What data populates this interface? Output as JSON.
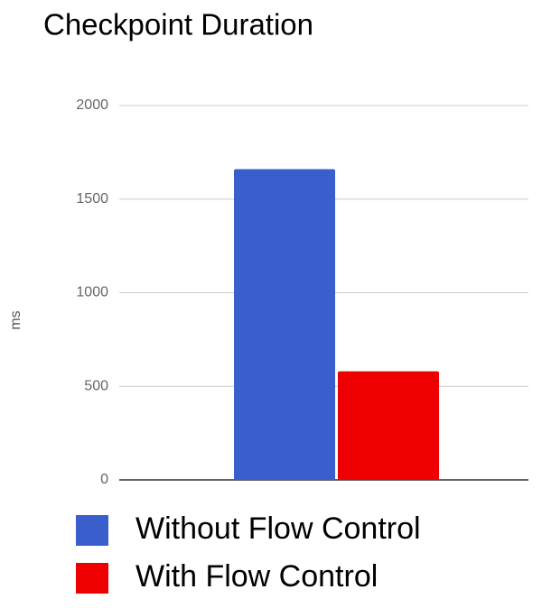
{
  "chart_data": {
    "type": "bar",
    "title": "Checkpoint Duration",
    "y_label": "ms",
    "categories": [
      null
    ],
    "series": [
      {
        "name": "Without Flow Control",
        "color": "#3a5fcd",
        "values": [
          1660
        ]
      },
      {
        "name": "With Flow Control",
        "color": "#ee0000",
        "values": [
          580
        ]
      }
    ],
    "ylim": [
      0,
      2000
    ],
    "yticks": [
      0,
      500,
      1000,
      1500,
      2000
    ],
    "grid": true,
    "legend": "bottom"
  }
}
